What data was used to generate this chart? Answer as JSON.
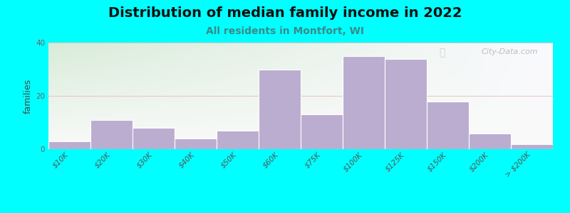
{
  "title": "Distribution of median family income in 2022",
  "subtitle": "All residents in Montfort, WI",
  "ylabel": "families",
  "background_color": "#00FFFF",
  "bar_color": "#bbadd0",
  "bar_edge_color": "#ffffff",
  "categories": [
    "$10K",
    "$20K",
    "$30K",
    "$40K",
    "$50K",
    "$60K",
    "$75K",
    "$100K",
    "$125K",
    "$150K",
    "$200K",
    "> $200K"
  ],
  "values": [
    3,
    11,
    8,
    4,
    7,
    30,
    13,
    35,
    34,
    18,
    6,
    2
  ],
  "ylim": [
    0,
    40
  ],
  "yticks": [
    0,
    20,
    40
  ],
  "grid_color": "#e8c8c8",
  "watermark": "City-Data.com",
  "title_fontsize": 14,
  "subtitle_fontsize": 10,
  "ylabel_fontsize": 9,
  "tick_fontsize": 7.5,
  "subtitle_color": "#3a8a8a",
  "title_color": "#111111"
}
